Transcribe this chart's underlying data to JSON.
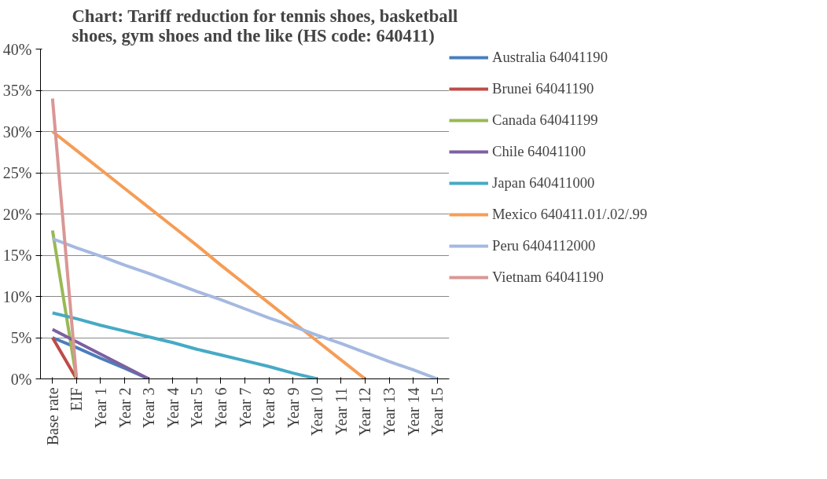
{
  "chart_data": {
    "type": "line",
    "title": "Chart: Tariff reduction for tennis shoes, basketball shoes, gym shoes and the like (HS code: 640411)",
    "categories": [
      "Base rate",
      "EIF",
      "Year 1",
      "Year 2",
      "Year 3",
      "Year 4",
      "Year 5",
      "Year 6",
      "Year 7",
      "Year 8",
      "Year 9",
      "Year 10",
      "Year 11",
      "Year 12",
      "Year 13",
      "Year 14",
      "Year 15"
    ],
    "series": [
      {
        "name": "Australia 64041190",
        "color": "#4a7ebb",
        "values": [
          5,
          3.8,
          2.5,
          1.3,
          0,
          null,
          null,
          null,
          null,
          null,
          null,
          null,
          null,
          null,
          null,
          null,
          null
        ]
      },
      {
        "name": "Brunei 64041190",
        "color": "#be4b48",
        "values": [
          5,
          0,
          null,
          null,
          null,
          null,
          null,
          null,
          null,
          null,
          null,
          null,
          null,
          null,
          null,
          null,
          null
        ]
      },
      {
        "name": "Canada 64041199",
        "color": "#98b954",
        "values": [
          18,
          0,
          null,
          null,
          null,
          null,
          null,
          null,
          null,
          null,
          null,
          null,
          null,
          null,
          null,
          null,
          null
        ]
      },
      {
        "name": "Chile 64041100",
        "color": "#7d60a0",
        "values": [
          6,
          4.5,
          3,
          1.5,
          0,
          null,
          null,
          null,
          null,
          null,
          null,
          null,
          null,
          null,
          null,
          null,
          null
        ]
      },
      {
        "name": "Japan 640411000",
        "color": "#46aac5",
        "values": [
          8,
          7.3,
          6.5,
          5.8,
          5.1,
          4.4,
          3.6,
          2.9,
          2.2,
          1.5,
          0.7,
          0,
          null,
          null,
          null,
          null,
          null
        ]
      },
      {
        "name": "Mexico 640411.01/.02/.99",
        "color": "#f59d56",
        "values": [
          30,
          27.7,
          25.4,
          23.1,
          20.8,
          18.5,
          16.2,
          13.8,
          11.5,
          9.2,
          6.9,
          4.6,
          2.3,
          0,
          null,
          null,
          null
        ]
      },
      {
        "name": "Peru 6404112000",
        "color": "#a5b9e0",
        "values": [
          17,
          15.9,
          14.9,
          13.8,
          12.8,
          11.7,
          10.6,
          9.6,
          8.5,
          7.4,
          6.4,
          5.3,
          4.3,
          3.2,
          2.1,
          1.1,
          0
        ]
      },
      {
        "name": "Vietnam 64041190",
        "color": "#d99795",
        "values": [
          34,
          0,
          null,
          null,
          null,
          null,
          null,
          null,
          null,
          null,
          null,
          null,
          null,
          null,
          null,
          null,
          null
        ]
      }
    ],
    "ylim": [
      0,
      40
    ],
    "yticks": [
      {
        "value": 0,
        "label": "0%"
      },
      {
        "value": 5,
        "label": "5%"
      },
      {
        "value": 10,
        "label": "10%"
      },
      {
        "value": 15,
        "label": "15%"
      },
      {
        "value": 20,
        "label": "20%"
      },
      {
        "value": 25,
        "label": "25%"
      },
      {
        "value": 30,
        "label": "30%"
      },
      {
        "value": 35,
        "label": "35%"
      },
      {
        "value": 40,
        "label": "40%"
      }
    ],
    "grid": "y",
    "legend": "right",
    "marker": "none",
    "line_style": "solid"
  }
}
